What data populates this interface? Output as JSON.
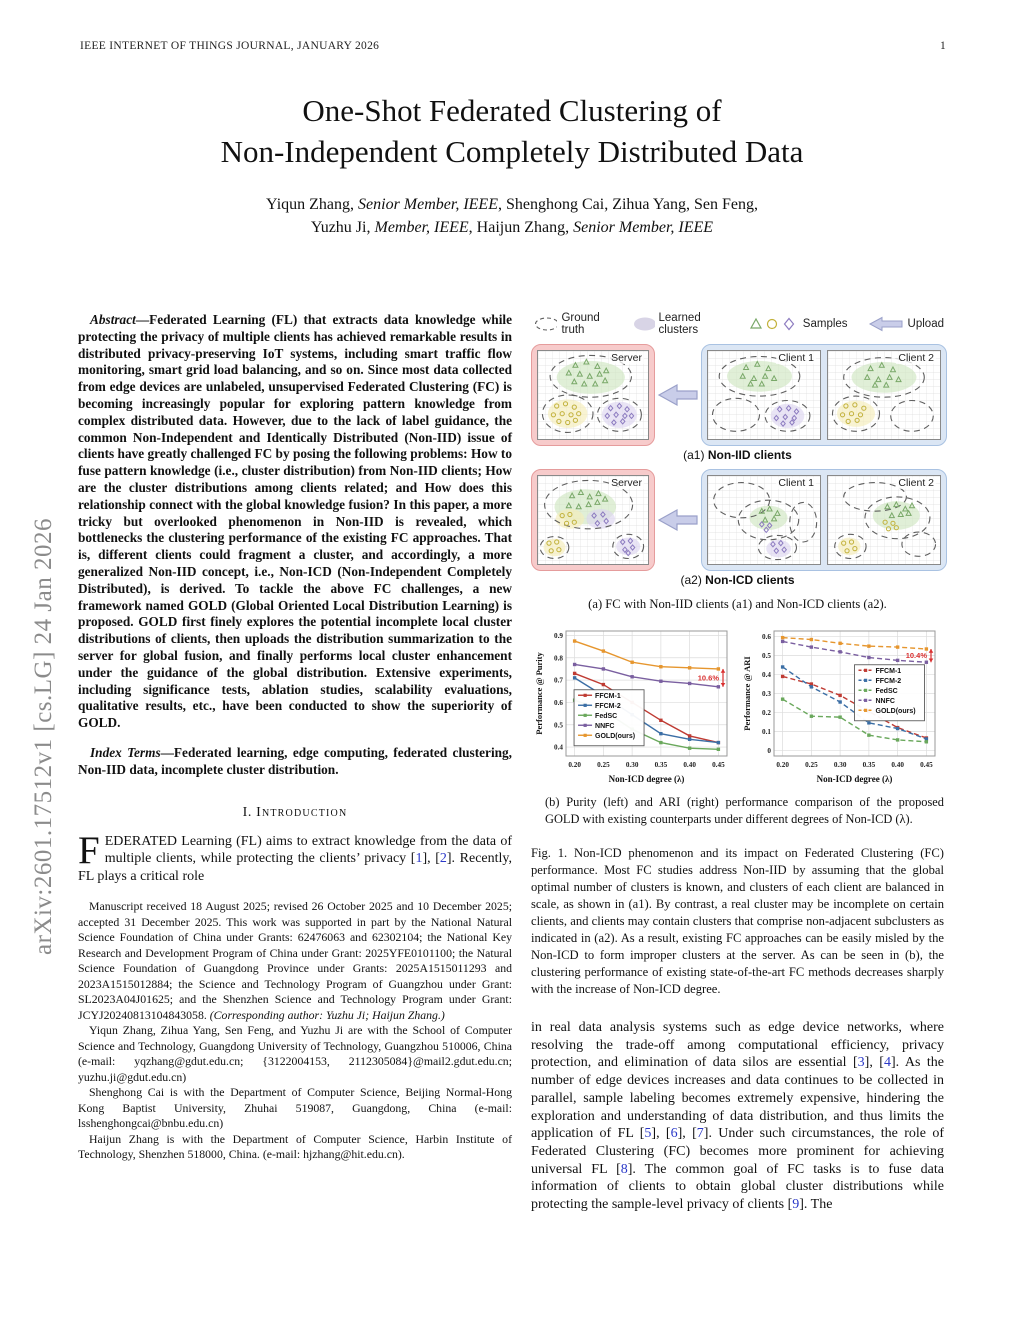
{
  "page": {
    "header": "IEEE INTERNET OF THINGS JOURNAL, JANUARY 2026",
    "number": "1",
    "arxiv_sidebar": "arXiv:2601.17512v1  [cs.LG]  24 Jan 2026"
  },
  "title": {
    "line1": "One-Shot Federated Clustering of",
    "line2": "Non-Independent Completely Distributed Data"
  },
  "authors": {
    "line1": [
      {
        "t": "Yiqun Zhang, "
      },
      {
        "t": "Senior Member, IEEE",
        "i": 1
      },
      {
        "t": ", Shenghong Cai, Zihua Yang, Sen Feng,"
      }
    ],
    "line2": [
      {
        "t": "Yuzhu Ji, "
      },
      {
        "t": "Member, IEEE",
        "i": 1
      },
      {
        "t": ", Haijun Zhang, "
      },
      {
        "t": "Senior Member, IEEE",
        "i": 1
      }
    ]
  },
  "abstract": {
    "segments": [
      {
        "t": "Abstract",
        "i": 1
      },
      {
        "t": "—Federated Learning (FL) that extracts data knowledge while protecting the privacy of multiple clients has achieved remarkable results in distributed privacy-preserving IoT systems, including smart traffic flow monitoring, smart grid load balancing, and so on. Since most data collected from edge devices are unlabeled, unsupervised Federated Clustering (FC) is becoming increasingly popular for exploring pattern knowledge from complex distributed data. However, due to the lack of label guidance, the common Non-Independent and Identically Distributed (Non-IID) issue of clients have greatly challenged FC by posing the following problems: How to fuse pattern knowledge (i.e., cluster distribution) from Non-IID clients; How are the cluster distributions among clients related; and How does this relationship connect with the global knowledge fusion? In this paper, a more tricky but overlooked phenomenon in Non-IID is revealed, which bottlenecks the clustering performance of the existing FC approaches. That is, different clients could fragment a cluster, and accordingly, a more generalized Non-IID concept, i.e., Non-ICD (Non-Independent Completely Distributed), is derived. To tackle the above FC challenges, a new framework named GOLD (Global Oriented Local Distribution Learning) is proposed. GOLD first finely explores the potential incomplete local cluster distributions of clients, then uploads the distribution summarization to the server for global fusion, and finally performs local cluster enhancement under the guidance of the global distribution. Extensive experiments, including significance tests, ablation studies, scalability evaluations, qualitative results, etc., have been conducted to show the superiority of GOLD."
      }
    ]
  },
  "index_terms": {
    "segments": [
      {
        "t": "Index Terms",
        "i": 1
      },
      {
        "t": "—Federated learning, edge computing, federated clustering, Non-IID data, incomplete cluster distribution."
      }
    ]
  },
  "sections": {
    "intro_num": "I.",
    "intro_title": "Introduction"
  },
  "intro": {
    "dropcap": "F",
    "segments": [
      {
        "t": "EDERATED Learning (FL) aims to extract knowledge from the data of multiple clients, while protecting the clients’ privacy ["
      },
      {
        "t": "1",
        "c": 1
      },
      {
        "t": "], ["
      },
      {
        "t": "2",
        "c": 1
      },
      {
        "t": "]. Recently, FL plays a critical role"
      }
    ]
  },
  "footnotes": {
    "para1": [
      {
        "t": "Manuscript received 18 August 2025; revised 26 October 2025 and 10 December 2025; accepted 31 December 2025. This work was supported in part by the National Natural Science Foundation of China under Grants: 62476063 and 62302104; the National Key Research and Development Program of China under Grant: 2025YFE0101100; the Natural Science Foundation of Guangdong Province under Grants: 2025A1515011293 and 2023A1515012884; the Science and Technology Program of Guangzhou under Grant: SL2023A04J01625; and the Shenzhen Science and Technology Program under Grant: JCYJ20240813104843058. "
      },
      {
        "t": "(Corresponding author: Yuzhu Ji; Haijun Zhang.)",
        "i": 1
      }
    ],
    "para2": [
      {
        "t": "Yiqun Zhang, Zihua Yang, Sen Feng, and Yuzhu Ji are with the School of Computer Science and Technology, Guangdong University of Technology, Guangzhou 510006, China (e-mail: yqzhang@gdut.edu.cn; {3122004153, 2112305084}@mail2.gdut.edu.cn; yuzhu.ji@gdut.edu.cn)"
      }
    ],
    "para3": [
      {
        "t": "Shenghong Cai is with the Department of Computer Science, Beijing Normal-Hong Kong Baptist University, Zhuhai 519087, Guangdong, China (e-mail: lsshenghongcai@bnbu.edu.cn)"
      }
    ],
    "para4": [
      {
        "t": "Haijun Zhang is with the Department of Computer Science, Harbin Institute of Technology, Shenzhen 518000, China. (e-mail: hjzhang@hit.edu.cn)."
      }
    ]
  },
  "figure1": {
    "legend": {
      "ground_truth": "Ground truth",
      "learned_clusters": "Learned clusters",
      "samples": "Samples",
      "upload": "Upload"
    },
    "panel_labels": {
      "server": "Server",
      "client1": "Client 1",
      "client2": "Client 2"
    },
    "sub_labels": {
      "a1": [
        {
          "t": "(a1) "
        },
        {
          "t": "Non-IID clients",
          "b": 1
        }
      ],
      "a2": [
        {
          "t": "(a2) "
        },
        {
          "t": "Non-ICD clients",
          "b": 1
        }
      ]
    },
    "caption_a": "(a) FC with Non-IID clients (a1) and Non-ICD clients (a2).",
    "caption_b": "(b) Purity (left) and ARI (right) performance comparison of the proposed GOLD with existing counterparts under different degrees of Non-ICD (λ).",
    "fig_caption": "Fig. 1.   Non-ICD phenomenon and its impact on Federated Clustering (FC) performance. Most FC studies address Non-IID by assuming that the global optimal number of clusters is known, and clusters of each client are balanced in scale, as shown in (a1). By contrast, a real cluster may be incomplete on certain clients, and clients may contain clusters that comprise non-adjacent subclusters as indicated in (a2). As a result, existing FC approaches can be easily misled by the Non-ICD to form improper clusters at the server. As can be seen in (b), the clustering performance of existing state-of-the-art FC methods decreases sharply with the increase of Non-ICD degree."
  },
  "body_right": {
    "segments": [
      {
        "t": "in real data analysis systems such as edge device networks, where resolving the trade-off among computational efficiency, privacy protection, and elimination of data silos are essential ["
      },
      {
        "t": "3",
        "c": 1
      },
      {
        "t": "], ["
      },
      {
        "t": "4",
        "c": 1
      },
      {
        "t": "]. As the number of edge devices increases and data continues to be collected in parallel, sample labeling becomes extremely expensive, hindering the exploration and understanding of data distribution, and thus limits the application of FL ["
      },
      {
        "t": "5",
        "c": 1
      },
      {
        "t": "], ["
      },
      {
        "t": "6",
        "c": 1
      },
      {
        "t": "], ["
      },
      {
        "t": "7",
        "c": 1
      },
      {
        "t": "]. Under such circumstances, the role of Federated Clustering (FC) becomes more prominent for achieving universal FL ["
      },
      {
        "t": "8",
        "c": 1
      },
      {
        "t": "]. The common goal of FC tasks is to fuse data information of clients to obtain global cluster distributions while protecting the sample-level privacy of clients ["
      },
      {
        "t": "9",
        "c": 1
      },
      {
        "t": "]. The"
      }
    ]
  },
  "chart_data": [
    {
      "type": "line",
      "title": "",
      "xlabel": "Non-ICD degree (λ)",
      "ylabel": "Performance @ Purity",
      "x": [
        0.2,
        0.25,
        0.3,
        0.35,
        0.4,
        0.45
      ],
      "xlim": [
        0.185,
        0.465
      ],
      "ylim": [
        0.36,
        0.92
      ],
      "yticks": [
        0.4,
        0.5,
        0.6,
        0.7,
        0.8,
        0.9
      ],
      "grid": true,
      "line_style": "solid",
      "legend_position": "bottom-left",
      "annotation": {
        "text": "10.6%",
        "color": "#d93030",
        "between": [
          "GOLD(ours)",
          "NNFC"
        ]
      },
      "series": [
        {
          "name": "FFCM-1",
          "color": "#bf3b33",
          "values": [
            0.73,
            0.68,
            0.6,
            0.52,
            0.45,
            0.42
          ]
        },
        {
          "name": "FFCM-2",
          "color": "#3b6ea5",
          "values": [
            0.71,
            0.63,
            0.545,
            0.46,
            0.435,
            0.42
          ]
        },
        {
          "name": "FedSC",
          "color": "#6aa85c",
          "values": [
            0.61,
            0.565,
            0.48,
            0.42,
            0.395,
            0.39
          ]
        },
        {
          "name": "NNFC",
          "color": "#7a5fa0",
          "values": [
            0.77,
            0.75,
            0.715,
            0.695,
            0.685,
            0.67
          ]
        },
        {
          "name": "GOLD(ours)",
          "color": "#e6962e",
          "values": [
            0.875,
            0.83,
            0.78,
            0.76,
            0.755,
            0.75
          ]
        }
      ]
    },
    {
      "type": "line",
      "title": "",
      "xlabel": "Non-ICD degree (λ)",
      "ylabel": "Performance @ ARI",
      "x": [
        0.2,
        0.25,
        0.3,
        0.35,
        0.4,
        0.45
      ],
      "xlim": [
        0.185,
        0.465
      ],
      "ylim": [
        -0.03,
        0.63
      ],
      "yticks": [
        0,
        0.1,
        0.2,
        0.3,
        0.4,
        0.5,
        0.6
      ],
      "grid": true,
      "line_style": "dashed",
      "legend_position": "middle-right",
      "annotation": {
        "text": "10.4%",
        "color": "#d93030",
        "between": [
          "GOLD(ours)",
          "NNFC"
        ]
      },
      "series": [
        {
          "name": "FFCM-1",
          "color": "#bf3b33",
          "values": [
            0.39,
            0.35,
            0.29,
            0.205,
            0.12,
            0.065
          ]
        },
        {
          "name": "FFCM-2",
          "color": "#3b6ea5",
          "values": [
            0.44,
            0.335,
            0.255,
            0.145,
            0.115,
            0.06
          ]
        },
        {
          "name": "FedSC",
          "color": "#6aa85c",
          "values": [
            0.27,
            0.18,
            0.175,
            0.08,
            0.055,
            0.045
          ]
        },
        {
          "name": "NNFC",
          "color": "#7a5fa0",
          "values": [
            0.575,
            0.545,
            0.52,
            0.49,
            0.475,
            0.465
          ]
        },
        {
          "name": "GOLD(ours)",
          "color": "#e6962e",
          "values": [
            0.595,
            0.585,
            0.565,
            0.55,
            0.545,
            0.535
          ]
        }
      ]
    }
  ],
  "colors": {
    "citation": "#2a38c8",
    "server_frame": "#f7cbcb",
    "client_frame": "#dbe6f4",
    "annotation_red": "#d93030",
    "sample_green": "#79a868",
    "sample_yellow": "#c2b13b",
    "sample_purple": "#8d7cc0"
  }
}
